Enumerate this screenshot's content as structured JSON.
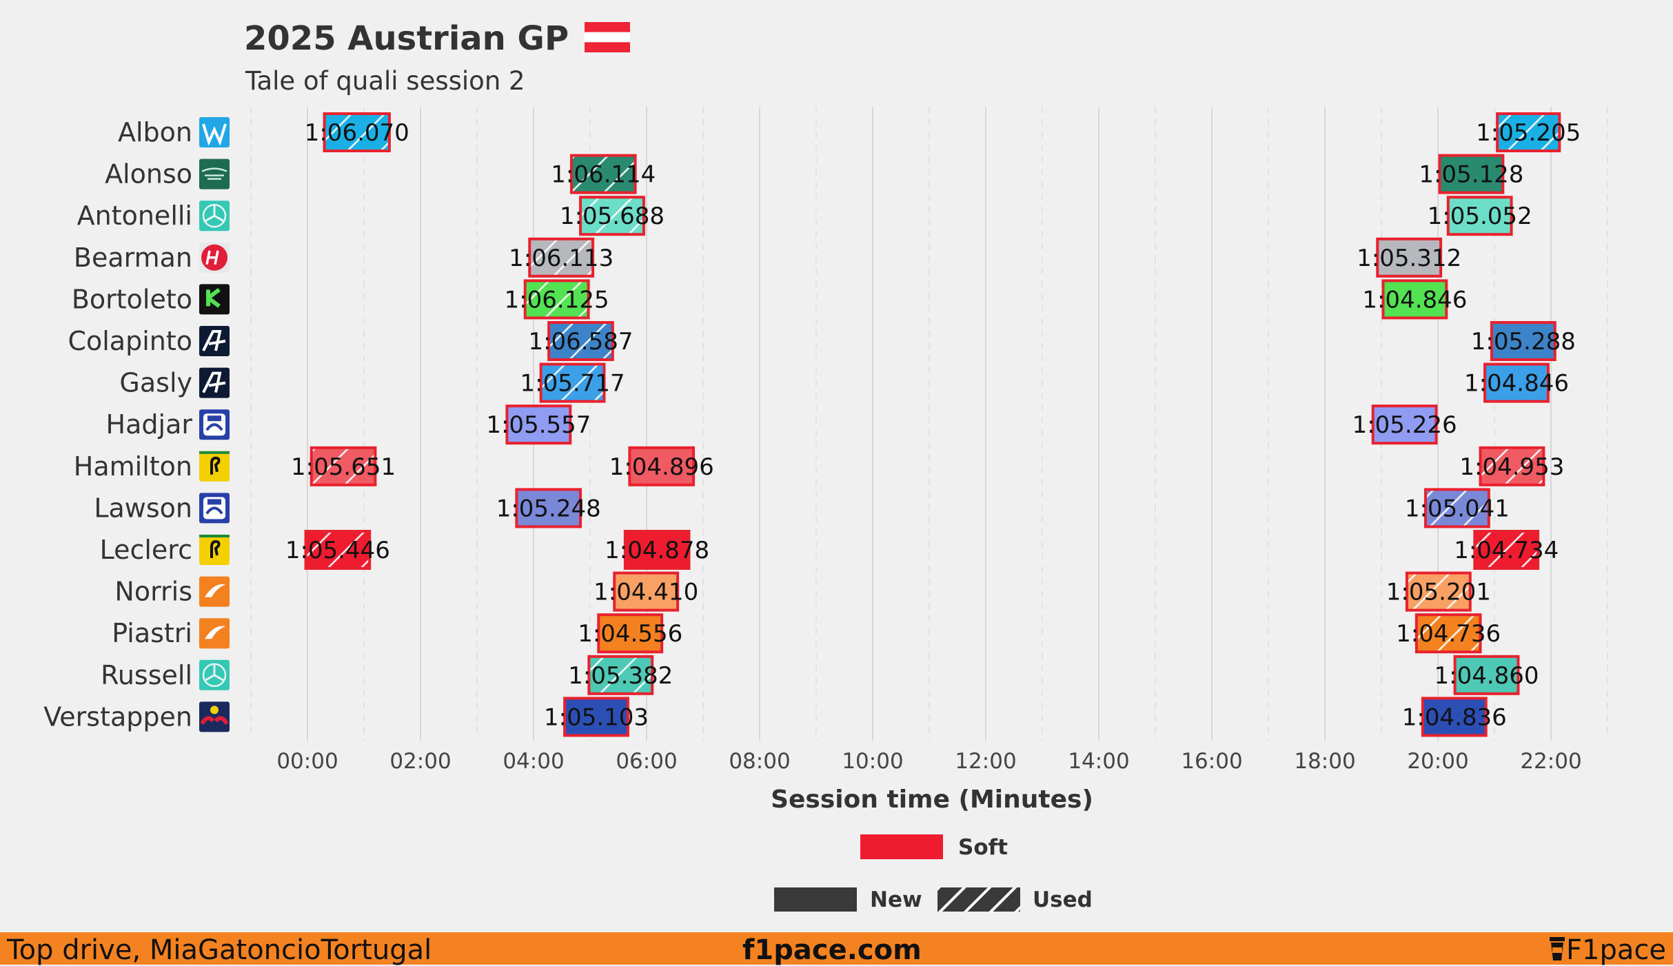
{
  "header": {
    "title": "2025 Austrian GP",
    "subtitle": "Tale of quali session 2"
  },
  "chart_data": {
    "type": "timeline",
    "xlabel": "Session time (Minutes)",
    "x_ticks": [
      "00:00",
      "02:00",
      "04:00",
      "06:00",
      "08:00",
      "10:00",
      "12:00",
      "14:00",
      "16:00",
      "18:00",
      "20:00",
      "22:00"
    ],
    "xlim": [
      -1,
      23
    ],
    "grid": true,
    "drivers": [
      "Albon",
      "Alonso",
      "Antonelli",
      "Bearman",
      "Bortoleto",
      "Colapinto",
      "Gasly",
      "Hadjar",
      "Hamilton",
      "Lawson",
      "Leclerc",
      "Norris",
      "Piastri",
      "Russell",
      "Verstappen"
    ],
    "laps": [
      {
        "driver": "Albon",
        "start": 0.3,
        "end": 1.45,
        "time": "1:06.070",
        "tyre": "Soft",
        "used": true,
        "color": "#1ab0e6"
      },
      {
        "driver": "Albon",
        "start": 21.05,
        "end": 22.15,
        "time": "1:05.205",
        "tyre": "Soft",
        "used": true,
        "color": "#1ab0e6"
      },
      {
        "driver": "Alonso",
        "start": 4.67,
        "end": 5.8,
        "time": "1:06.114",
        "tyre": "Soft",
        "used": true,
        "color": "#2a8a70"
      },
      {
        "driver": "Alonso",
        "start": 20.03,
        "end": 21.15,
        "time": "1:05.128",
        "tyre": "Soft",
        "used": false,
        "color": "#2a8a70"
      },
      {
        "driver": "Antonelli",
        "start": 4.83,
        "end": 5.95,
        "time": "1:05.688",
        "tyre": "Soft",
        "used": true,
        "color": "#6cdec8"
      },
      {
        "driver": "Antonelli",
        "start": 20.18,
        "end": 21.3,
        "time": "1:05.052",
        "tyre": "Soft",
        "used": false,
        "color": "#6cdec8"
      },
      {
        "driver": "Bearman",
        "start": 3.93,
        "end": 5.05,
        "time": "1:06.113",
        "tyre": "Soft",
        "used": true,
        "color": "#b6b8bd"
      },
      {
        "driver": "Bearman",
        "start": 18.93,
        "end": 20.05,
        "time": "1:05.312",
        "tyre": "Soft",
        "used": false,
        "color": "#b6b8bd"
      },
      {
        "driver": "Bortoleto",
        "start": 3.85,
        "end": 4.97,
        "time": "1:06.125",
        "tyre": "Soft",
        "used": true,
        "color": "#52e252"
      },
      {
        "driver": "Bortoleto",
        "start": 19.03,
        "end": 20.15,
        "time": "1:04.846",
        "tyre": "Soft",
        "used": false,
        "color": "#52e252"
      },
      {
        "driver": "Colapinto",
        "start": 4.27,
        "end": 5.4,
        "time": "1:06.587",
        "tyre": "Soft",
        "used": true,
        "color": "#3d83c9"
      },
      {
        "driver": "Colapinto",
        "start": 20.95,
        "end": 22.07,
        "time": "1:05.288",
        "tyre": "Soft",
        "used": false,
        "color": "#3d83c9"
      },
      {
        "driver": "Gasly",
        "start": 4.13,
        "end": 5.25,
        "time": "1:05.717",
        "tyre": "Soft",
        "used": true,
        "color": "#3ca0e8"
      },
      {
        "driver": "Gasly",
        "start": 20.83,
        "end": 21.95,
        "time": "1:04.846",
        "tyre": "Soft",
        "used": false,
        "color": "#3ca0e8"
      },
      {
        "driver": "Hadjar",
        "start": 3.53,
        "end": 4.65,
        "time": "1:05.557",
        "tyre": "Soft",
        "used": false,
        "color": "#8f9cf2"
      },
      {
        "driver": "Hadjar",
        "start": 18.85,
        "end": 19.97,
        "time": "1:05.226",
        "tyre": "Soft",
        "used": false,
        "color": "#8f9cf2"
      },
      {
        "driver": "Hamilton",
        "start": 0.07,
        "end": 1.2,
        "time": "1:05.651",
        "tyre": "Soft",
        "used": true,
        "color": "#f05a62"
      },
      {
        "driver": "Hamilton",
        "start": 5.7,
        "end": 6.83,
        "time": "1:04.896",
        "tyre": "Soft",
        "used": false,
        "color": "#f05a62"
      },
      {
        "driver": "Hamilton",
        "start": 20.75,
        "end": 21.87,
        "time": "1:04.953",
        "tyre": "Soft",
        "used": true,
        "color": "#f05a62"
      },
      {
        "driver": "Lawson",
        "start": 3.7,
        "end": 4.83,
        "time": "1:05.248",
        "tyre": "Soft",
        "used": false,
        "color": "#7a88d8"
      },
      {
        "driver": "Lawson",
        "start": 19.78,
        "end": 20.9,
        "time": "1:05.041",
        "tyre": "Soft",
        "used": true,
        "color": "#7a88d8"
      },
      {
        "driver": "Leclerc",
        "start": -0.03,
        "end": 1.1,
        "time": "1:05.446",
        "tyre": "Soft",
        "used": true,
        "color": "#ee1c2e"
      },
      {
        "driver": "Leclerc",
        "start": 5.62,
        "end": 6.75,
        "time": "1:04.878",
        "tyre": "Soft",
        "used": false,
        "color": "#ee1c2e"
      },
      {
        "driver": "Leclerc",
        "start": 20.65,
        "end": 21.77,
        "time": "1:04.734",
        "tyre": "Soft",
        "used": true,
        "color": "#ee1c2e"
      },
      {
        "driver": "Norris",
        "start": 5.43,
        "end": 6.55,
        "time": "1:04.410",
        "tyre": "Soft",
        "used": false,
        "color": "#f9a064"
      },
      {
        "driver": "Norris",
        "start": 19.45,
        "end": 20.57,
        "time": "1:05.201",
        "tyre": "Soft",
        "used": true,
        "color": "#f9a064"
      },
      {
        "driver": "Piastri",
        "start": 5.15,
        "end": 6.27,
        "time": "1:04.556",
        "tyre": "Soft",
        "used": false,
        "color": "#f4811f"
      },
      {
        "driver": "Piastri",
        "start": 19.62,
        "end": 20.75,
        "time": "1:04.736",
        "tyre": "Soft",
        "used": true,
        "color": "#f4811f"
      },
      {
        "driver": "Russell",
        "start": 4.98,
        "end": 6.1,
        "time": "1:05.382",
        "tyre": "Soft",
        "used": true,
        "color": "#4ec9b5"
      },
      {
        "driver": "Russell",
        "start": 20.3,
        "end": 21.42,
        "time": "1:04.860",
        "tyre": "Soft",
        "used": false,
        "color": "#4ec9b5"
      },
      {
        "driver": "Verstappen",
        "start": 4.55,
        "end": 5.67,
        "time": "1:05.103",
        "tyre": "Soft",
        "used": false,
        "color": "#2b4fb5"
      },
      {
        "driver": "Verstappen",
        "start": 19.73,
        "end": 20.85,
        "time": "1:04.836",
        "tyre": "Soft",
        "used": false,
        "color": "#2b4fb5"
      }
    ],
    "legend": {
      "tyres": [
        {
          "label": "Soft",
          "color": "#ee1c2e"
        }
      ],
      "condition": [
        {
          "label": "New"
        },
        {
          "label": "Used"
        }
      ]
    },
    "team_icons": {
      "Albon": "williams-icon",
      "Alonso": "aston-martin-icon",
      "Antonelli": "mercedes-icon",
      "Bearman": "haas-icon",
      "Bortoleto": "sauber-icon",
      "Colapinto": "alpine-icon",
      "Gasly": "alpine-icon",
      "Hadjar": "racing-bulls-icon",
      "Hamilton": "ferrari-icon",
      "Lawson": "racing-bulls-icon",
      "Leclerc": "ferrari-icon",
      "Norris": "mclaren-icon",
      "Piastri": "mclaren-icon",
      "Russell": "mercedes-icon",
      "Verstappen": "red-bull-icon"
    }
  },
  "footer": {
    "left": "Top drive, MiaGatoncioTortugal",
    "center": "f1pace.com",
    "right": "F1pace"
  },
  "colors": {
    "accent": "#f58220",
    "background": "#f0f0f0",
    "soft": "#ee1c2e"
  }
}
